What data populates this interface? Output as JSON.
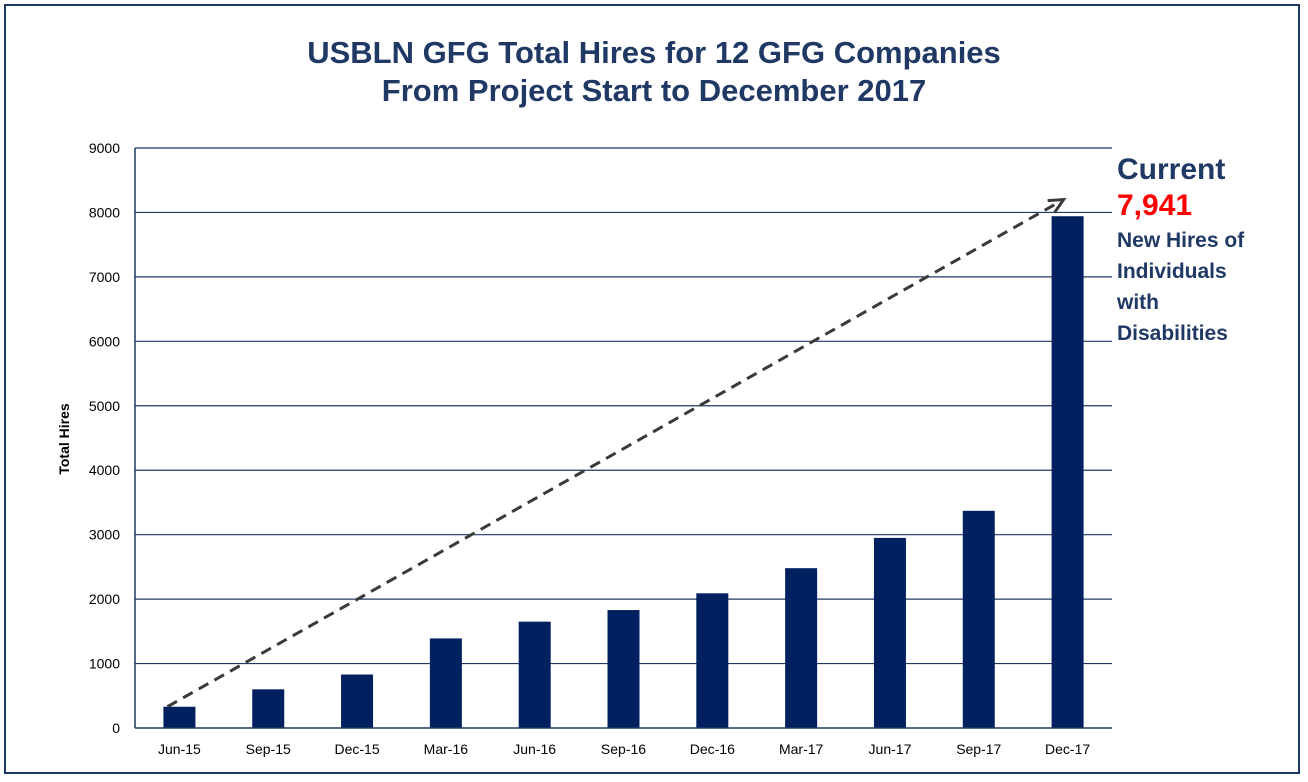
{
  "chart_data": {
    "type": "bar",
    "title_lines": [
      "USBLN GFG Total Hires for 12 GFG Companies",
      "From Project Start to December 2017"
    ],
    "xlabel": "",
    "ylabel": "Total Hires",
    "ylim": [
      0,
      9000
    ],
    "yticks": [
      0,
      1000,
      2000,
      3000,
      4000,
      5000,
      6000,
      7000,
      8000,
      9000
    ],
    "grid": true,
    "categories": [
      "Jun-15",
      "Sep-15",
      "Dec-15",
      "Mar-16",
      "Jun-16",
      "Sep-16",
      "Dec-16",
      "Mar-17",
      "Jun-17",
      "Sep-17",
      "Dec-17"
    ],
    "values": [
      330,
      600,
      830,
      1390,
      1650,
      1830,
      2090,
      2480,
      2950,
      3370,
      7941
    ],
    "bar_color": "#002060",
    "trend_arrow": {
      "style": "dashed",
      "from": [
        "Jun-15",
        330
      ],
      "to": [
        "Dec-17",
        8200
      ]
    },
    "annotation": {
      "heading": "Current",
      "value": "7,941",
      "value_color": "#ff0000",
      "lines": [
        "New Hires of",
        "Individuals",
        "with",
        "Disabilities"
      ]
    }
  }
}
